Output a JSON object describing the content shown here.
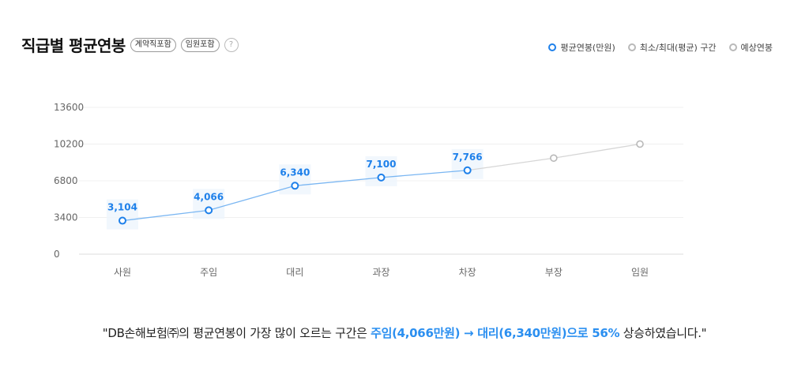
{
  "header": {
    "title": "직급별 평균연봉",
    "pill_contract": "계약직포함",
    "pill_exec": "임원포함",
    "help": "?"
  },
  "legend": {
    "avg": "평균연봉(만원)",
    "range": "최소/최대(평균) 구간",
    "expected": "예상연봉"
  },
  "colors": {
    "accent": "#1e80ea",
    "highlight": "#2b8ff0",
    "gray": "#b9b9b9"
  },
  "chart_data": {
    "type": "line",
    "categories": [
      "사원",
      "주임",
      "대리",
      "과장",
      "차장",
      "부장",
      "임원"
    ],
    "series": [
      {
        "name": "평균연봉(만원)",
        "values": [
          3104,
          4066,
          6340,
          7100,
          7766,
          null,
          null
        ],
        "labels": [
          "3,104",
          "4,066",
          "6,340",
          "7,100",
          "7,766",
          "",
          ""
        ]
      },
      {
        "name": "예상연봉",
        "values": [
          null,
          null,
          null,
          null,
          7766,
          8900,
          10200
        ]
      }
    ],
    "yticks": [
      0,
      3400,
      6800,
      10200,
      13600
    ],
    "ylim": [
      0,
      13600
    ],
    "grid": true,
    "legend_position": "top-right"
  },
  "footer": {
    "part1": "\"DB손해보험㈜의 평균연봉이 가장 많이 오르는 구간은 ",
    "highlight": "주임(4,066만원) → 대리(6,340만원)으로 56%",
    "part2": " 상승하였습니다.\""
  }
}
